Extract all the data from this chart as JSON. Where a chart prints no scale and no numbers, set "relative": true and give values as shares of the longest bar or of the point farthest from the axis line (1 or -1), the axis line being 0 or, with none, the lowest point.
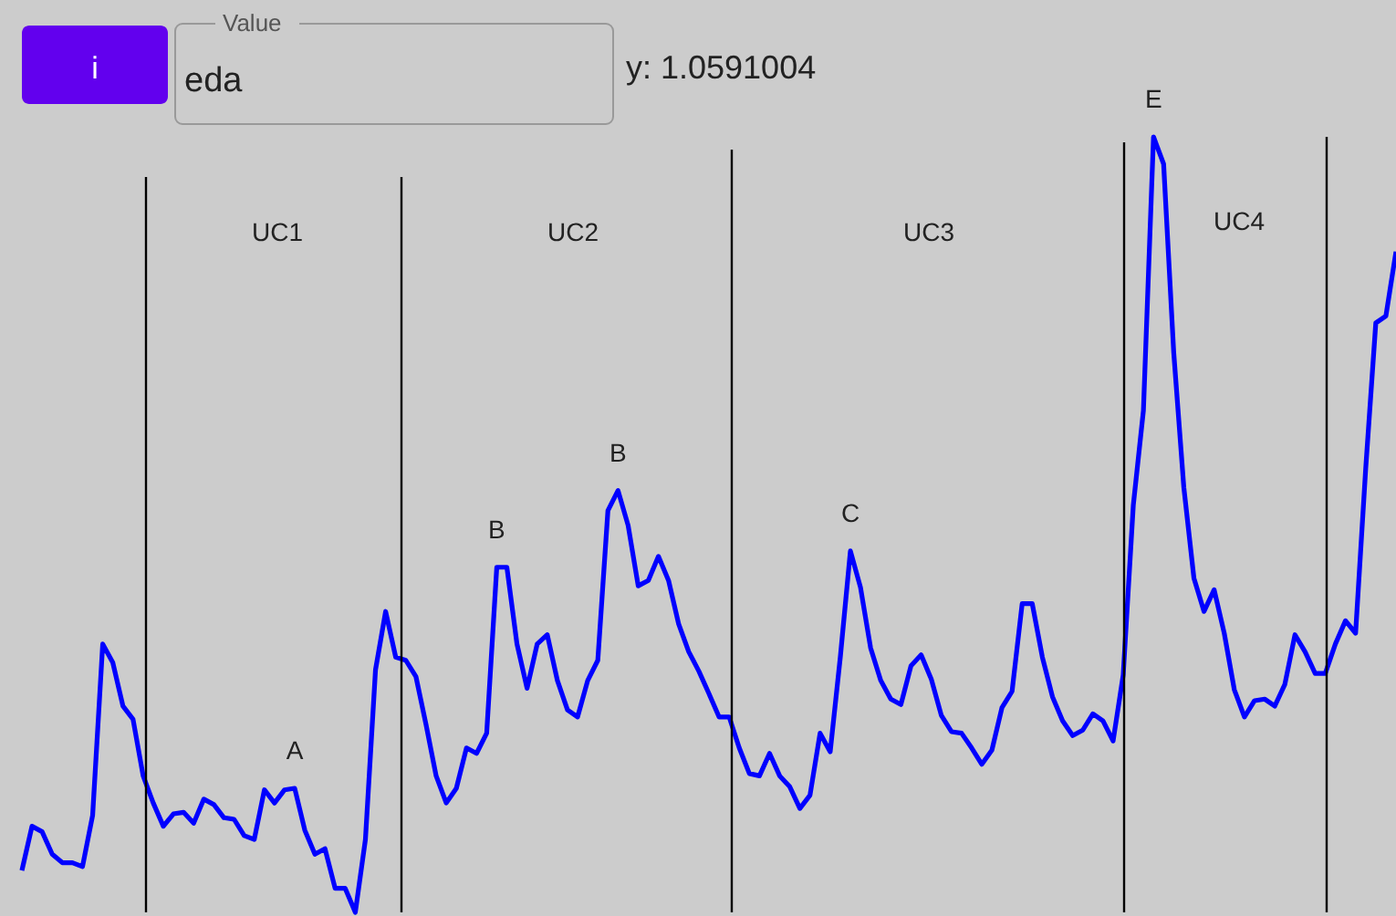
{
  "chart_data": {
    "type": "line",
    "relative": true,
    "line_style": "solid",
    "categories": [
      null,
      null,
      null,
      null,
      null,
      null,
      null,
      null,
      null,
      null,
      null,
      null,
      null,
      null,
      null,
      null,
      null,
      null,
      null,
      null,
      null,
      null,
      null,
      null,
      null,
      null,
      null,
      null,
      null,
      null,
      null,
      null,
      null,
      null,
      null,
      null,
      null,
      null,
      null,
      null,
      null,
      null,
      null,
      null,
      null,
      null,
      null,
      null,
      null,
      null,
      null,
      null,
      null,
      null,
      null,
      null,
      null,
      null,
      null,
      null,
      null,
      null,
      null,
      null,
      null,
      null,
      null,
      null,
      null,
      null,
      null,
      null,
      null,
      null,
      null,
      null,
      null,
      null,
      null,
      null,
      null,
      null,
      null,
      null,
      null,
      null,
      null,
      null,
      null,
      null,
      null,
      null,
      null,
      null,
      null,
      null,
      null,
      null,
      null,
      null,
      null,
      null,
      null,
      null,
      null,
      null,
      null,
      null,
      null,
      null,
      null,
      null,
      null,
      null,
      null,
      null,
      null,
      null,
      null,
      null,
      null,
      null,
      null,
      null,
      null,
      null,
      null,
      null,
      null,
      null,
      null,
      null,
      null,
      null,
      null,
      null,
      null
    ],
    "series": [
      {
        "color": "#0000ff",
        "values": [
          0.054,
          0.111,
          0.104,
          0.075,
          0.064,
          0.064,
          0.059,
          0.125,
          0.346,
          0.322,
          0.266,
          0.249,
          0.176,
          0.141,
          0.111,
          0.127,
          0.129,
          0.115,
          0.146,
          0.139,
          0.122,
          0.12,
          0.099,
          0.094,
          0.158,
          0.141,
          0.158,
          0.16,
          0.106,
          0.075,
          0.082,
          0.031,
          0.031,
          0,
          0.094,
          0.313,
          0.388,
          0.329,
          0.325,
          0.304,
          0.242,
          0.176,
          0.141,
          0.16,
          0.212,
          0.205,
          0.231,
          0.445,
          0.445,
          0.346,
          0.289,
          0.346,
          0.358,
          0.299,
          0.261,
          0.252,
          0.299,
          0.325,
          0.518,
          0.544,
          0.499,
          0.421,
          0.428,
          0.459,
          0.428,
          0.372,
          0.336,
          0.311,
          0.282,
          0.252,
          0.252,
          0.212,
          0.179,
          0.176,
          0.205,
          0.176,
          0.162,
          0.134,
          0.151,
          0.231,
          0.207,
          0.329,
          0.466,
          0.419,
          0.341,
          0.299,
          0.275,
          0.268,
          0.318,
          0.332,
          0.301,
          0.254,
          0.233,
          0.231,
          0.212,
          0.191,
          0.209,
          0.264,
          0.285,
          0.398,
          0.398,
          0.329,
          0.278,
          0.247,
          0.228,
          0.235,
          0.256,
          0.247,
          0.221,
          0.306,
          0.525,
          0.647,
          1,
          0.965,
          0.722,
          0.548,
          0.431,
          0.388,
          0.416,
          0.36,
          0.287,
          0.252,
          0.273,
          0.275,
          0.266,
          0.294,
          0.358,
          0.336,
          0.308,
          0.308,
          0.346,
          0.376,
          0.36,
          0.572,
          0.76,
          0.769,
          0.852
        ]
      }
    ],
    "annotations": [
      "i",
      "Value",
      "eda",
      "y: 1.0591004",
      "UC1",
      "UC2",
      "UC3",
      "UC4",
      {
        "text": "A",
        "y": 0.16
      },
      {
        "text": "B",
        "y": 0.445
      },
      {
        "text": "B",
        "y": 0.544
      },
      {
        "text": "C",
        "y": 0.466
      },
      {
        "text": "E",
        "y": 1
      }
    ]
  }
}
